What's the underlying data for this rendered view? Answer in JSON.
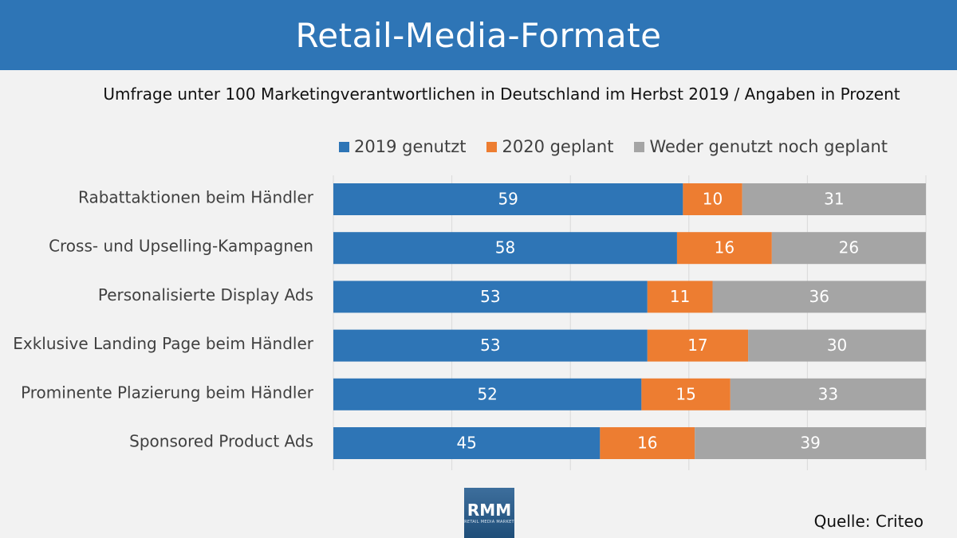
{
  "banner": {
    "title": "Retail-Media-Formate"
  },
  "subtitle": "Umfrage unter 100 Marketingverantwortlichen in Deutschland im Herbst 2019 / Angaben in Prozent",
  "source": "Quelle: Criteo",
  "logo": {
    "main": "RMM",
    "sub": "RETAIL MEDIA MARKET"
  },
  "chart_data": {
    "type": "bar",
    "orientation": "horizontal",
    "stacked": true,
    "categories": [
      "Rabattaktionen beim Händler",
      "Cross- und Upselling-Kampagnen",
      "Personalisierte Display Ads",
      "Exklusive Landing Page beim Händler",
      "Prominente Plazierung beim Händler",
      "Sponsored Product Ads"
    ],
    "series": [
      {
        "name": "2019 genutzt",
        "color": "#2e75b6",
        "label_color": "#ffffff",
        "values": [
          59,
          58,
          53,
          53,
          52,
          45
        ]
      },
      {
        "name": "2020 geplant",
        "color": "#ed7d31",
        "label_color": "#ffffff",
        "values": [
          10,
          16,
          11,
          17,
          15,
          16
        ]
      },
      {
        "name": "Weder genutzt noch geplant",
        "color": "#a5a5a5",
        "label_color": "#ffffff",
        "values": [
          31,
          26,
          36,
          30,
          33,
          39
        ]
      }
    ],
    "xlim": [
      0,
      100
    ],
    "legend_position": "top",
    "grid": true
  }
}
